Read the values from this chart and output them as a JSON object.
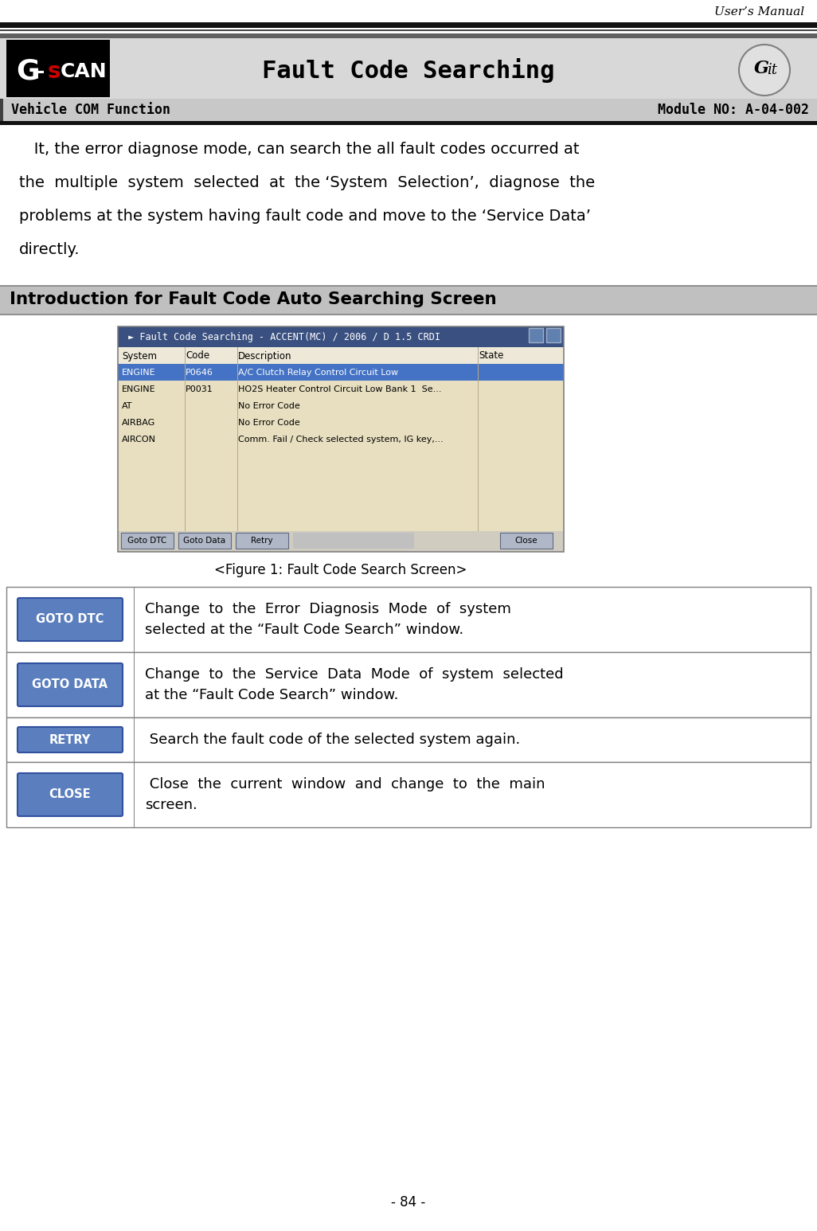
{
  "page_title": "User’s Manual",
  "header_title": "Fault Code Searching",
  "left_header": "Vehicle COM Function",
  "right_header": "Module NO: A-04-002",
  "body_text_lines": [
    "   It, the error diagnose mode, can search the all fault codes occurred at",
    "the  multiple  system  selected  at  the ‘System  Selection’,  diagnose  the",
    "problems at the system having fault code and move to the ‘Service Data’",
    "directly."
  ],
  "section_title": "Introduction for Fault Code Auto Searching Screen",
  "figure_caption": "<Figure 1: Fault Code Search Screen>",
  "screen_title": " ► Fault Code Searching - ACCENT(MC) / 2006 / D 1.5 CRDI",
  "screen_cols": [
    "System",
    "Code",
    "Description",
    "State"
  ],
  "screen_rows": [
    [
      "ENGINE",
      "P0646",
      "A/C Clutch Relay Control Circuit Low",
      ""
    ],
    [
      "ENGINE",
      "P0031",
      "HO2S Heater Control Circuit Low Bank 1  Se...",
      ""
    ],
    [
      "AT",
      "",
      "No Error Code",
      ""
    ],
    [
      "AIRBAG",
      "",
      "No Error Code",
      ""
    ],
    [
      "AIRCON",
      "",
      "Comm. Fail / Check selected system, IG key,...",
      ""
    ]
  ],
  "screen_buttons_left": [
    "Goto DTC",
    "Goto Data",
    "Retry"
  ],
  "screen_buttons_right": [
    "Close"
  ],
  "button_rows": [
    {
      "button_label": "GOTO DTC",
      "button_color": "#5b7fbe",
      "desc_lines": [
        "Change  to  the  Error  Diagnosis  Mode  of  system",
        "selected at the “Fault Code Search” window."
      ]
    },
    {
      "button_label": "GOTO DATA",
      "button_color": "#5b7fbe",
      "desc_lines": [
        "Change  to  the  Service  Data  Mode  of  system  selected",
        "at the “Fault Code Search” window."
      ]
    },
    {
      "button_label": "RETRY",
      "button_color": "#5b7fbe",
      "desc_lines": [
        " Search the fault code of the selected system again."
      ]
    },
    {
      "button_label": "CLOSE",
      "button_color": "#5b7fbe",
      "desc_lines": [
        " Close  the  current  window  and  change  to  the  main",
        "screen."
      ]
    }
  ],
  "page_number": "- 84 -",
  "bg_color": "#ffffff",
  "screen_title_bg": "#3a5080",
  "screen_header_bg": "#ede8d8",
  "screen_row_highlight": "#4472c4",
  "screen_row_normal": "#e8dfc0",
  "screen_btn_bg": "#c8c8c8",
  "screen_btn_border": "#808080",
  "top_bar_color": "#000000",
  "header_bg_top": "#909090",
  "header_bg_main": "#e0e0e0",
  "subheader_bg": "#c8c8c8",
  "section_bg": "#c0c0c0",
  "table_border": "#808080"
}
